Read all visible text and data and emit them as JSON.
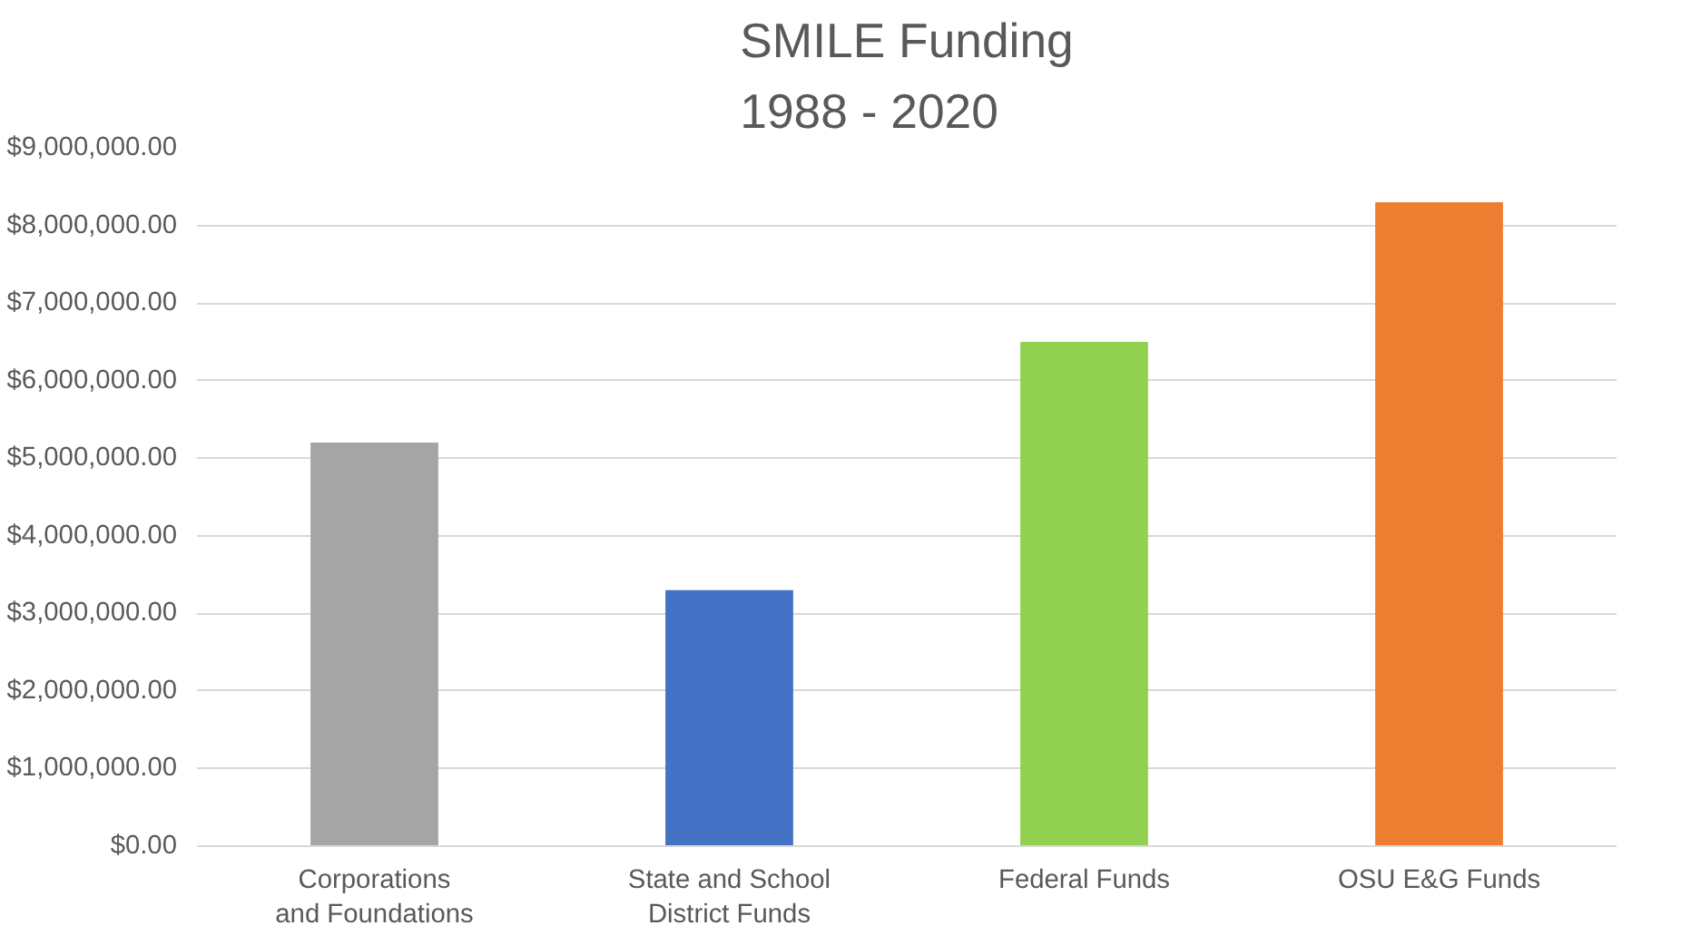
{
  "chart_data": {
    "type": "bar",
    "title": "SMILE Funding\n1988 - 2020",
    "categories": [
      "Corporations and Foundations",
      "State and School District Funds",
      "Federal Funds",
      "OSU E&G Funds"
    ],
    "values": [
      5200000,
      3300000,
      6500000,
      8300000
    ],
    "colors": [
      "#a5a5a5",
      "#4472c4",
      "#92d050",
      "#ed7d31"
    ],
    "ylim": [
      0,
      9000000
    ],
    "yticks": [
      {
        "value": 0,
        "label": "$0.00"
      },
      {
        "value": 1000000,
        "label": "$1,000,000.00"
      },
      {
        "value": 2000000,
        "label": "$2,000,000.00"
      },
      {
        "value": 3000000,
        "label": "$3,000,000.00"
      },
      {
        "value": 4000000,
        "label": "$4,000,000.00"
      },
      {
        "value": 5000000,
        "label": "$5,000,000.00"
      },
      {
        "value": 6000000,
        "label": "$6,000,000.00"
      },
      {
        "value": 7000000,
        "label": "$7,000,000.00"
      },
      {
        "value": 8000000,
        "label": "$8,000,000.00"
      },
      {
        "value": 9000000,
        "label": "$9,000,000.00"
      }
    ],
    "grid": "y"
  }
}
